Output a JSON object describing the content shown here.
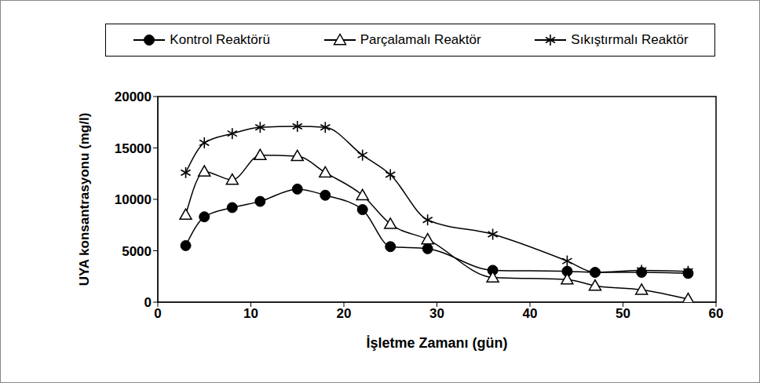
{
  "chart_data": {
    "type": "line",
    "y_label": "UYA konsantrasyonu (mg/l)",
    "x_label": "İşletme Zamanı (gün)",
    "x": [
      3,
      5,
      8,
      11,
      15,
      18,
      22,
      25,
      29,
      36,
      44,
      47,
      52,
      57
    ],
    "series": [
      {
        "name": "Kontrol Reaktörü",
        "color": "#000000",
        "marker": "circle",
        "line_style": "solid",
        "values": [
          5500,
          8300,
          9200,
          9800,
          11000,
          10400,
          9000,
          5400,
          5200,
          3100,
          3000,
          2900,
          2900,
          2800
        ]
      },
      {
        "name": "Parçalamalı Reaktör",
        "color": "#000000",
        "marker": "triangle",
        "line_style": "solid",
        "values": [
          8500,
          12700,
          11900,
          14300,
          14200,
          12600,
          10400,
          7600,
          6100,
          2400,
          2200,
          1600,
          1200,
          300
        ]
      },
      {
        "name": "Sıkıştırmalı Reaktör",
        "color": "#000000",
        "marker": "asterisk",
        "line_style": "solid",
        "values": [
          12600,
          15500,
          16400,
          17000,
          17100,
          17000,
          14300,
          12400,
          8000,
          6600,
          4000,
          2900,
          3100,
          3000
        ]
      }
    ],
    "xlim": [
      0,
      60
    ],
    "xticks": [
      0,
      10,
      20,
      30,
      40,
      50,
      60
    ],
    "ylim": [
      0,
      20000
    ],
    "yticks": [
      0,
      5000,
      10000,
      15000,
      20000
    ],
    "grid": false,
    "legend": "top"
  }
}
